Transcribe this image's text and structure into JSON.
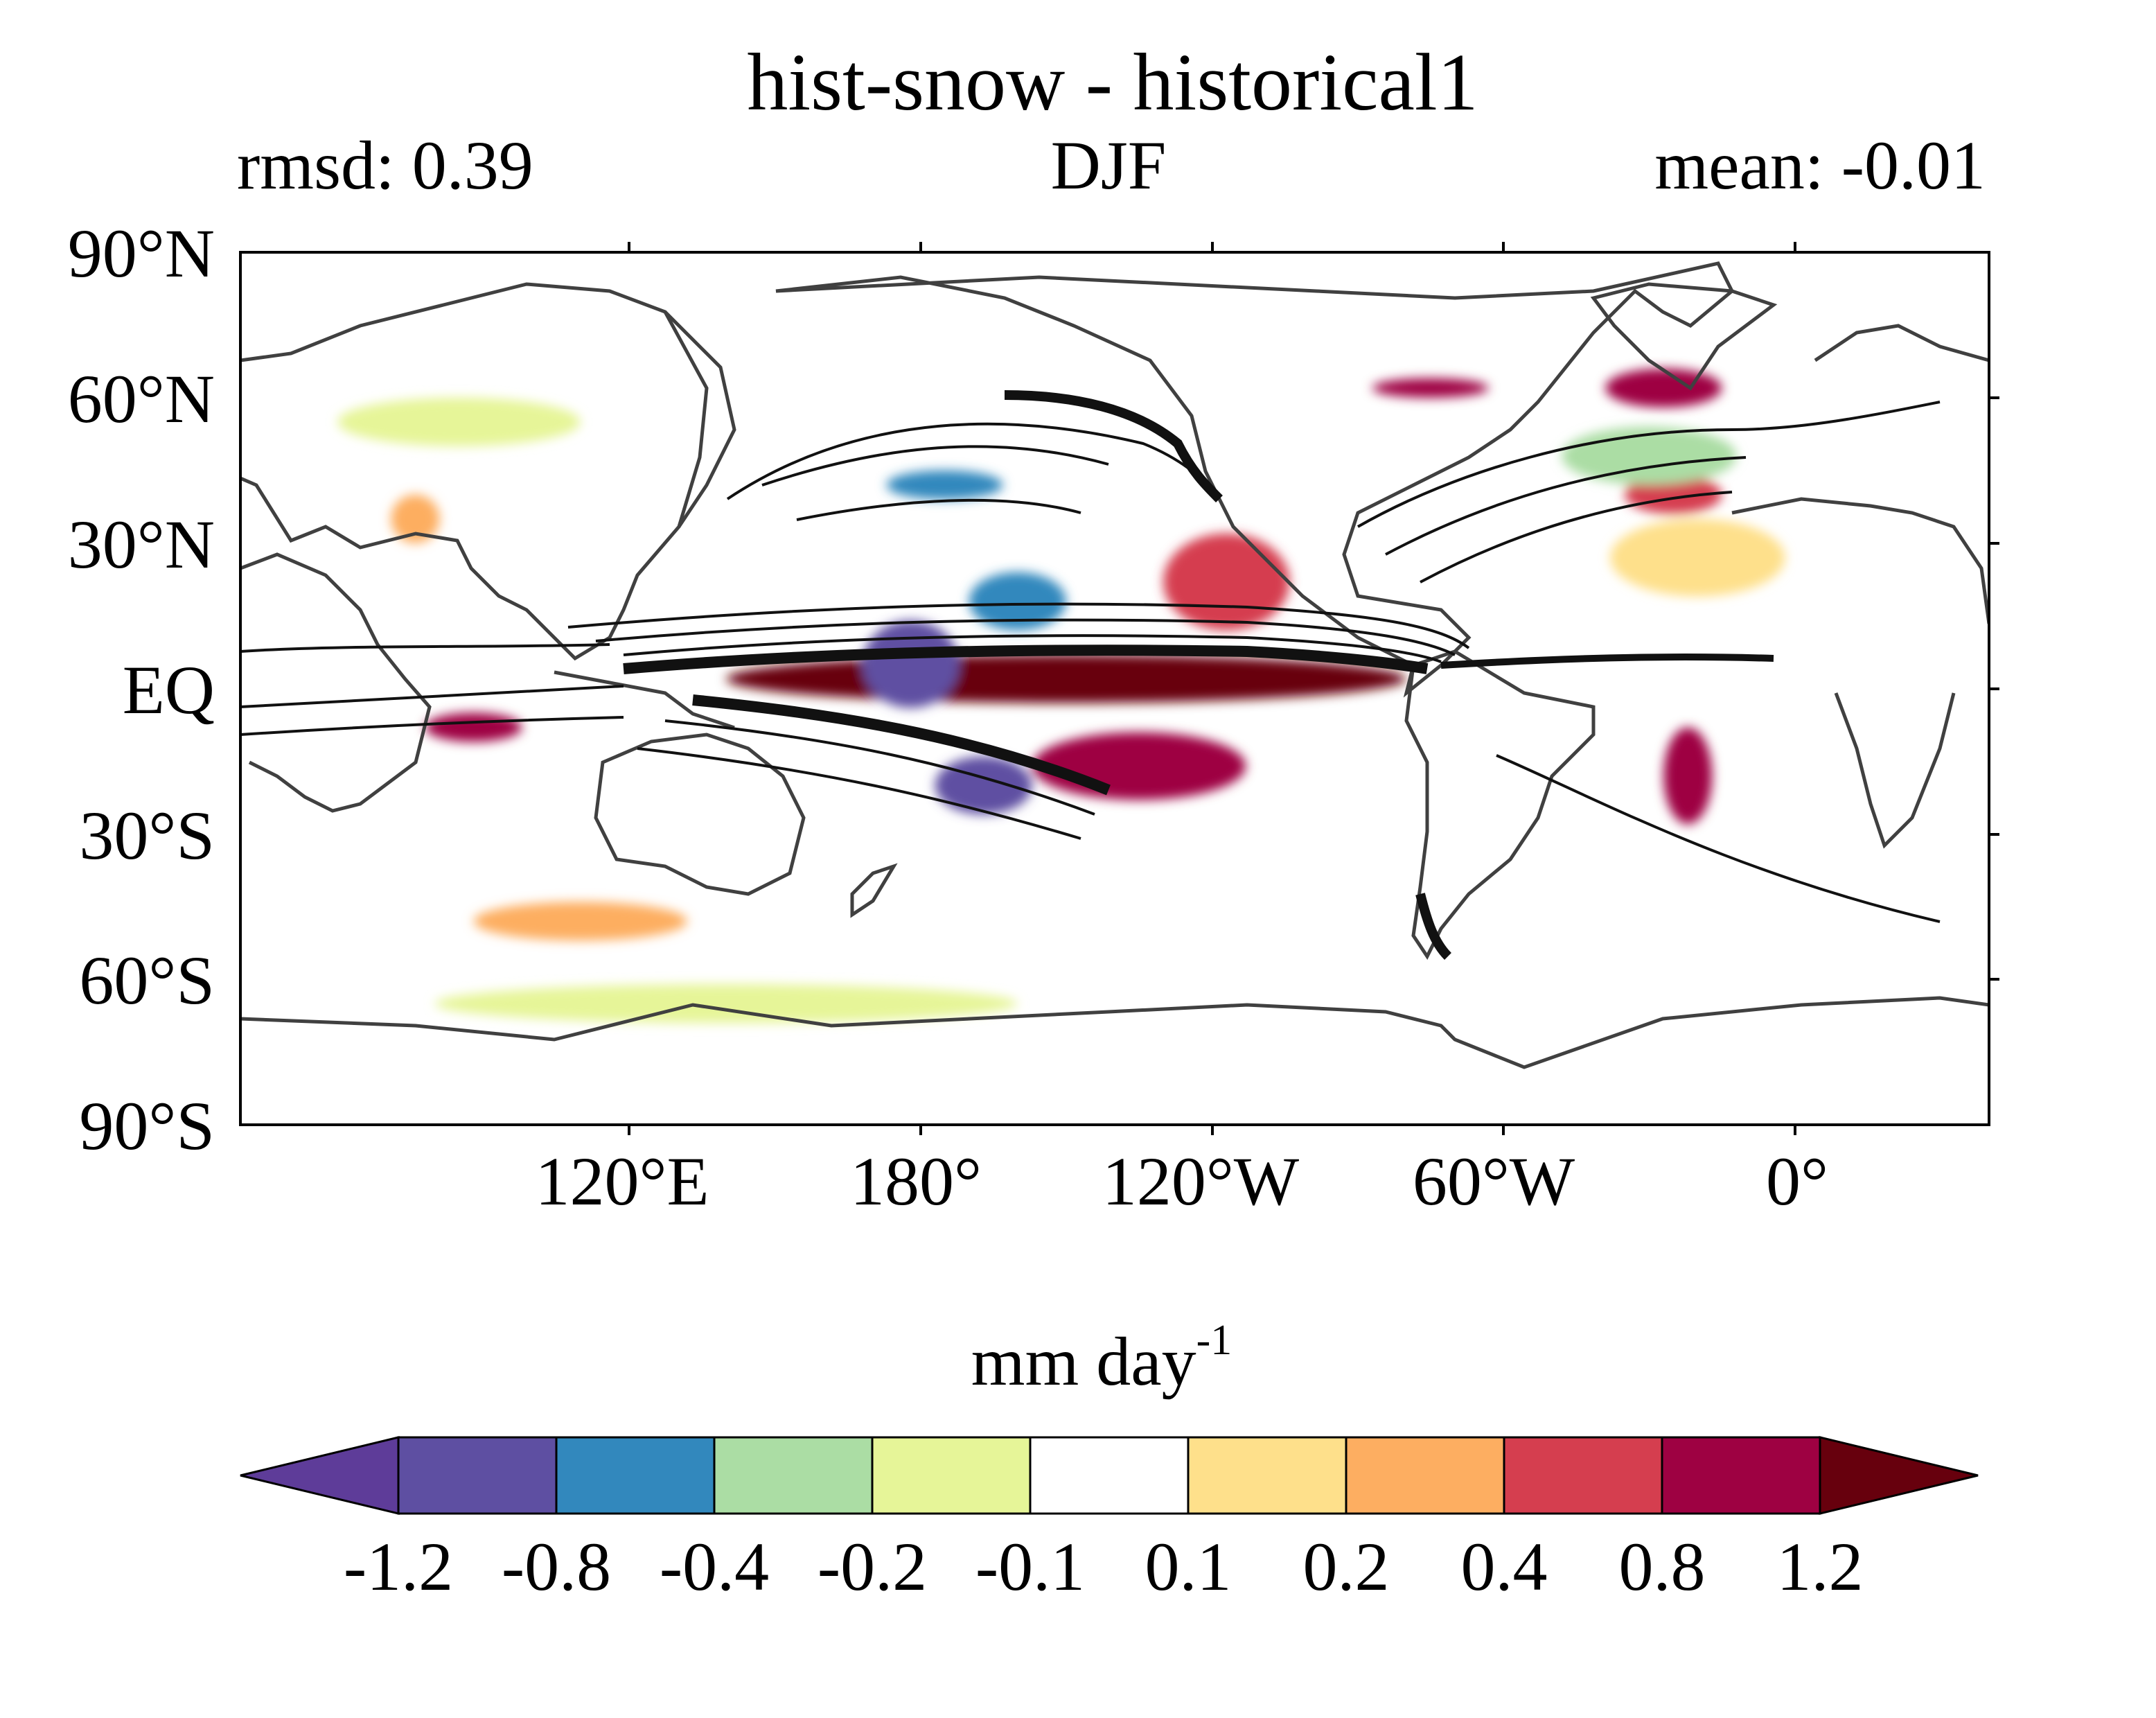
{
  "chart_data": {
    "type": "heatmap",
    "title": "hist-snow - historical1",
    "subtitle_left": "rmsd: 0.39",
    "subtitle_center": "DJF",
    "subtitle_right": "mean: -0.01",
    "projection": "cylindrical-equidistant",
    "lon_range": [
      30,
      390
    ],
    "lat_range": [
      -90,
      90
    ],
    "x_ticks": [
      {
        "lon": 120,
        "label": "120°E"
      },
      {
        "lon": 180,
        "label": "180°"
      },
      {
        "lon": 240,
        "label": "120°W"
      },
      {
        "lon": 300,
        "label": "60°W"
      },
      {
        "lon": 360,
        "label": "0°"
      }
    ],
    "y_ticks": [
      {
        "lat": 90,
        "label": "90°N"
      },
      {
        "lat": 60,
        "label": "60°N"
      },
      {
        "lat": 30,
        "label": "30°N"
      },
      {
        "lat": 0,
        "label": "EQ"
      },
      {
        "lat": -30,
        "label": "30°S"
      },
      {
        "lat": -60,
        "label": "60°S"
      },
      {
        "lat": -90,
        "label": "90°S"
      }
    ],
    "colorbar": {
      "label_main": "mm day",
      "label_sup": "-1",
      "levels": [
        -1.2,
        -0.8,
        -0.4,
        -0.2,
        -0.1,
        0.1,
        0.2,
        0.4,
        0.8,
        1.2
      ],
      "level_labels": [
        "-1.2",
        "-0.8",
        "-0.4",
        "-0.2",
        "-0.1",
        "0.1",
        "0.2",
        "0.4",
        "0.8",
        "1.2"
      ],
      "colors": [
        "#5e3c99",
        "#5e4fa2",
        "#3288bd",
        "#abdda4",
        "#e6f598",
        "#ffffff",
        "#fee08b",
        "#fdae61",
        "#d53e4f",
        "#9e0142",
        "#67000d"
      ],
      "extend": "both"
    },
    "anomaly_regions": [
      {
        "lon": 200,
        "lat": 2,
        "wlon": 70,
        "wlat": 5,
        "value": 1.3
      },
      {
        "lon": 215,
        "lat": -16,
        "wlon": 22,
        "wlat": 7,
        "value": 1.0
      },
      {
        "lon": 233,
        "lat": 22,
        "wlon": 13,
        "wlat": 10,
        "value": 0.7
      },
      {
        "lon": 275,
        "lat": 62,
        "wlon": 12,
        "wlat": 2,
        "value": 1.0
      },
      {
        "lon": 323,
        "lat": 62,
        "wlon": 12,
        "wlat": 4,
        "value": 0.8
      },
      {
        "lon": 325,
        "lat": 40,
        "wlon": 10,
        "wlat": 4,
        "value": 0.6
      },
      {
        "lon": 328,
        "lat": -18,
        "wlon": 5,
        "wlat": 10,
        "value": 0.9
      },
      {
        "lon": 66,
        "lat": 35,
        "wlon": 5,
        "wlat": 5,
        "value": 0.3
      },
      {
        "lon": 78,
        "lat": -8,
        "wlon": 10,
        "wlat": 3,
        "value": 0.9
      },
      {
        "lon": 183,
        "lat": -20,
        "wlon": 10,
        "wlat": 6,
        "value": -0.9
      },
      {
        "lon": 168,
        "lat": 5,
        "wlon": 10,
        "wlat": 9,
        "value": -0.9
      },
      {
        "lon": 190,
        "lat": 18,
        "wlon": 10,
        "wlat": 6,
        "value": -0.5
      },
      {
        "lon": 175,
        "lat": 42,
        "wlon": 12,
        "wlat": 3,
        "value": -0.5
      },
      {
        "lon": 330,
        "lat": 27,
        "wlon": 18,
        "wlat": 8,
        "value": 0.15
      },
      {
        "lon": 100,
        "lat": -48,
        "wlon": 22,
        "wlat": 4,
        "value": 0.2
      },
      {
        "lon": 75,
        "lat": 55,
        "wlon": 25,
        "wlat": 5,
        "value": -0.15
      },
      {
        "lon": 130,
        "lat": -65,
        "wlon": 60,
        "wlat": 4,
        "value": -0.15
      },
      {
        "lon": 320,
        "lat": 48,
        "wlon": 18,
        "wlat": 6,
        "value": -0.3
      }
    ]
  }
}
